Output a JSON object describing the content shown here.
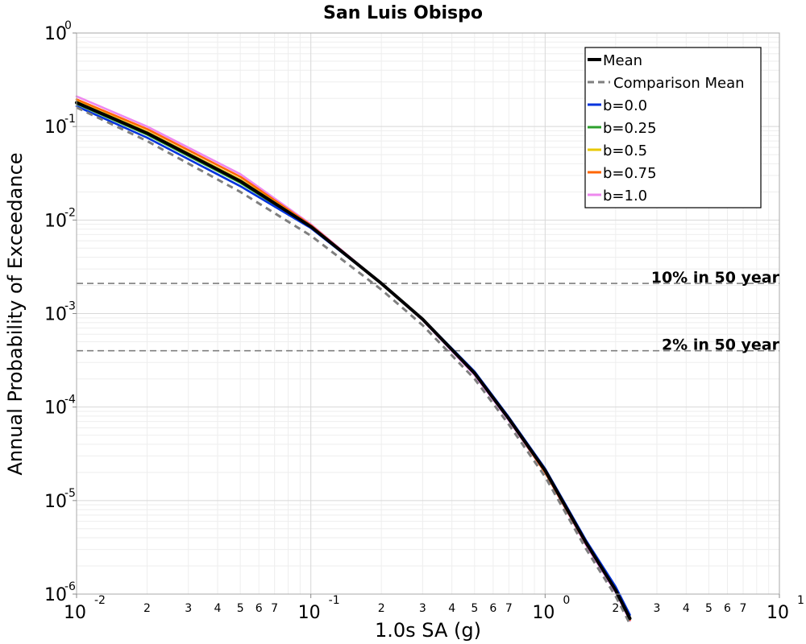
{
  "chart_data": {
    "type": "line",
    "title": "San Luis Obispo",
    "xlabel": "1.0s SA (g)",
    "ylabel": "Annual Probability of Exceedance",
    "x_scale": "log",
    "y_scale": "log",
    "xlim": [
      0.01,
      10
    ],
    "ylim": [
      1e-06,
      1
    ],
    "grid": true,
    "legend_position": "top-right",
    "x_major_ticks": [
      {
        "base": "10",
        "exp": "-2",
        "value": 0.01
      },
      {
        "base": "10",
        "exp": "-1",
        "value": 0.1
      },
      {
        "base": "10",
        "exp": "0",
        "value": 1
      },
      {
        "base": "10",
        "exp": "1",
        "value": 10
      }
    ],
    "y_major_ticks": [
      {
        "base": "10",
        "exp": "0",
        "value": 1
      },
      {
        "base": "10",
        "exp": "-1",
        "value": 0.1
      },
      {
        "base": "10",
        "exp": "-2",
        "value": 0.01
      },
      {
        "base": "10",
        "exp": "-3",
        "value": 0.001
      },
      {
        "base": "10",
        "exp": "-4",
        "value": 0.0001
      },
      {
        "base": "10",
        "exp": "-5",
        "value": 1e-05
      },
      {
        "base": "10",
        "exp": "-6",
        "value": 1e-06
      }
    ],
    "x_minor_tick_labels": [
      "2",
      "3",
      "4",
      "5",
      "6",
      "7"
    ],
    "x": [
      0.01,
      0.02,
      0.05,
      0.1,
      0.2,
      0.3,
      0.5,
      0.7,
      1.0,
      1.5,
      2.0,
      2.3
    ],
    "series": [
      {
        "name": "Mean",
        "color": "#000000",
        "dash": "solid",
        "values": [
          0.18,
          0.085,
          0.026,
          0.0085,
          0.0021,
          0.00087,
          0.00023,
          7.5e-05,
          2.1e-05,
          3.5e-06,
          1.1e-06,
          5.5e-07
        ]
      },
      {
        "name": "Comparison Mean",
        "color": "#7f7f7f",
        "dash": "dashed",
        "values": [
          0.16,
          0.07,
          0.02,
          0.0068,
          0.0018,
          0.00075,
          0.0002,
          6.5e-05,
          1.8e-05,
          3e-06,
          9.5e-07,
          4.8e-07
        ]
      },
      {
        "name": "b=0.0",
        "color": "#0033dd",
        "dash": "solid",
        "values": [
          0.165,
          0.076,
          0.023,
          0.0082,
          0.0021,
          0.00088,
          0.00024,
          7.8e-05,
          2.2e-05,
          3.7e-06,
          1.2e-06,
          6e-07
        ]
      },
      {
        "name": "b=0.25",
        "color": "#2ca02c",
        "dash": "solid",
        "values": [
          0.175,
          0.082,
          0.025,
          0.0084,
          0.0021,
          0.00087,
          0.00023,
          7.6e-05,
          2.1e-05,
          3.6e-06,
          1.1e-06,
          5.6e-07
        ]
      },
      {
        "name": "b=0.5",
        "color": "#e8c800",
        "dash": "solid",
        "values": [
          0.185,
          0.088,
          0.027,
          0.0086,
          0.0021,
          0.00087,
          0.00023,
          7.5e-05,
          2.1e-05,
          3.5e-06,
          1.1e-06,
          5.5e-07
        ]
      },
      {
        "name": "b=0.75",
        "color": "#ff6600",
        "dash": "solid",
        "values": [
          0.195,
          0.094,
          0.029,
          0.0088,
          0.0021,
          0.00086,
          0.00023,
          7.4e-05,
          2e-05,
          3.4e-06,
          1.1e-06,
          5.3e-07
        ]
      },
      {
        "name": "b=1.0",
        "color": "#ee88ee",
        "dash": "solid",
        "values": [
          0.21,
          0.1,
          0.031,
          0.009,
          0.0021,
          0.00085,
          0.00022,
          7.2e-05,
          2e-05,
          3.3e-06,
          1.05e-06,
          5.2e-07
        ]
      }
    ],
    "reference_lines": [
      {
        "label": "10% in 50 year",
        "y": 0.0021,
        "color": "#7f7f7f"
      },
      {
        "label": "2% in 50 year",
        "y": 0.0004,
        "color": "#7f7f7f"
      }
    ]
  }
}
